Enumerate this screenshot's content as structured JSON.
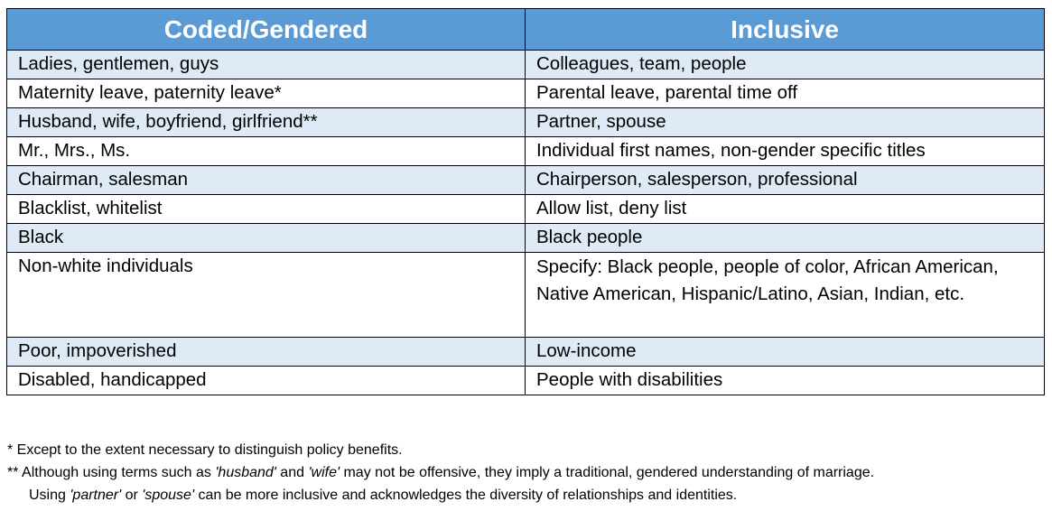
{
  "table": {
    "headers": [
      "Coded/Gendered",
      "Inclusive"
    ],
    "rows": [
      {
        "coded": "Ladies, gentlemen, guys",
        "inclusive": "Colleagues, team, people"
      },
      {
        "coded": "Maternity leave, paternity leave*",
        "inclusive": "Parental leave, parental time off"
      },
      {
        "coded": "Husband, wife, boyfriend, girlfriend**",
        "inclusive": "Partner, spouse"
      },
      {
        "coded": "Mr., Mrs., Ms.",
        "inclusive": "Individual first names, non-gender specific titles"
      },
      {
        "coded": "Chairman, salesman",
        "inclusive": "Chairperson, salesperson, professional"
      },
      {
        "coded": "Blacklist, whitelist",
        "inclusive": "Allow list, deny list"
      },
      {
        "coded": "Black",
        "inclusive": "Black people"
      },
      {
        "coded": "Non-white individuals",
        "inclusive": "Specify: Black people, people of color, African American, Native American, Hispanic/Latino, Asian, Indian, etc."
      },
      {
        "coded": "Poor, impoverished",
        "inclusive": "Low-income"
      },
      {
        "coded": "Disabled, handicapped",
        "inclusive": "People with disabilities"
      }
    ]
  },
  "footnotes": {
    "note1": "* Except to the extent necessary to distinguish policy benefits.",
    "note2": {
      "prefix": "** Although using terms such as ",
      "term1": "'husband'",
      "mid1": " and ",
      "term2": "'wife'",
      "suffix": " may not be offensive, they imply a traditional, gendered understanding of marriage.",
      "cont_prefix": "Using ",
      "term3": "'partner'",
      "cont_mid": " or ",
      "term4": "'spouse'",
      "cont_suffix": " can be more inclusive and acknowledges the diversity of relationships and identities."
    }
  }
}
